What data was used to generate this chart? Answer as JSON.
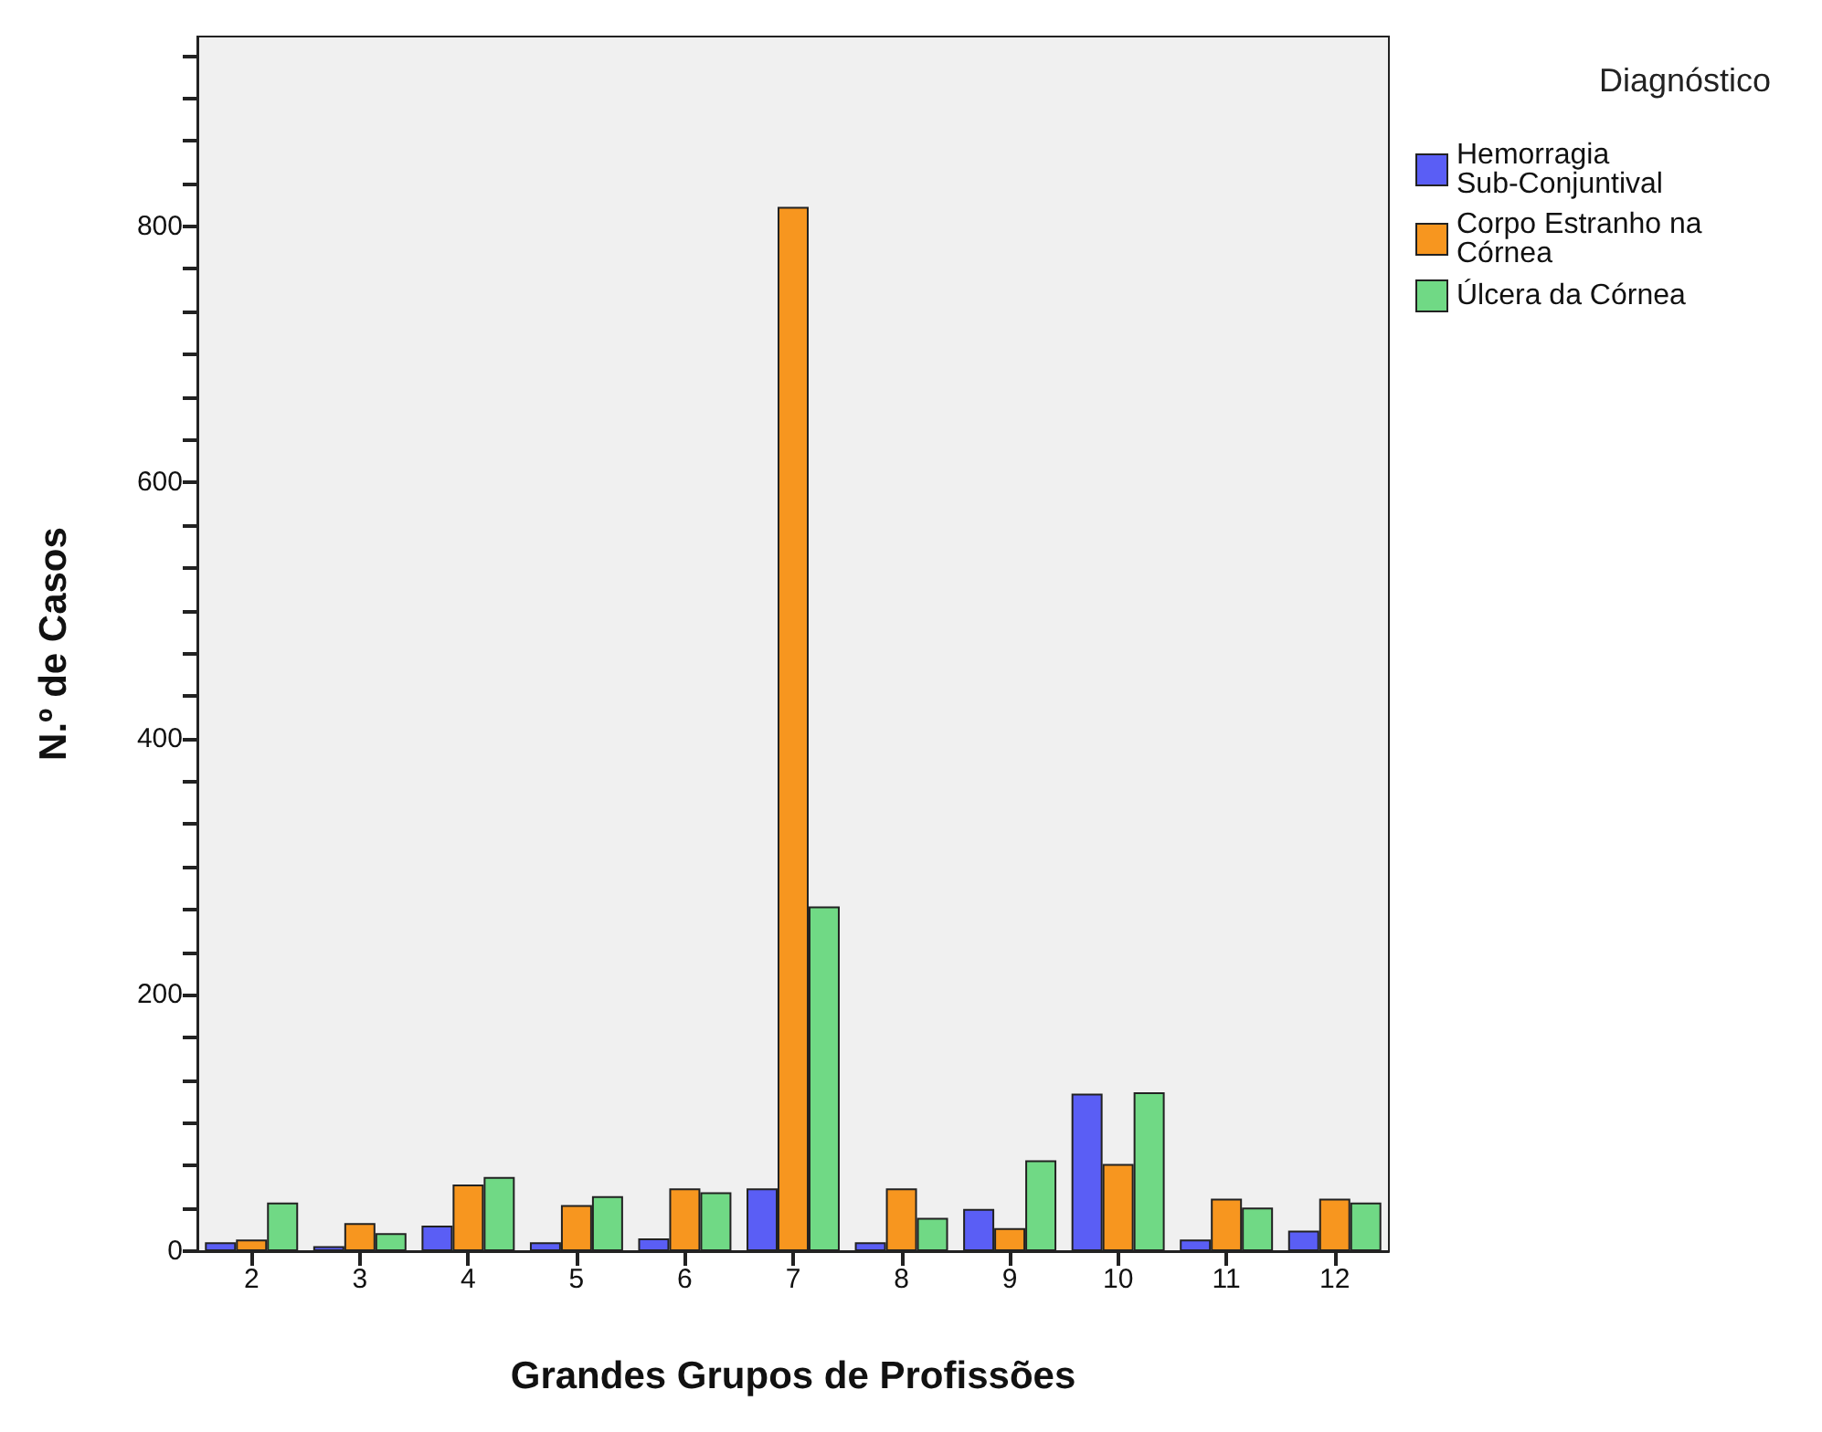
{
  "chart_data": {
    "type": "bar",
    "xlabel": "Grandes Grupos de Profissões",
    "ylabel": "N.º de Casos",
    "legend_title": "Diagnóstico",
    "legend": "top right",
    "grid": false,
    "categories": [
      "2",
      "3",
      "4",
      "5",
      "6",
      "7",
      "8",
      "9",
      "10",
      "11",
      "12"
    ],
    "ylim": [
      0,
      948
    ],
    "yticks": [
      0,
      {
        "value": 33.3,
        "label": null
      },
      {
        "value": 66.7,
        "label": null
      },
      {
        "value": 100,
        "label": null
      },
      {
        "value": 133.3,
        "label": null
      },
      {
        "value": 166.7,
        "label": null
      },
      200,
      {
        "value": 233.3,
        "label": null
      },
      {
        "value": 266.7,
        "label": null
      },
      {
        "value": 300,
        "label": null
      },
      {
        "value": 333.3,
        "label": null
      },
      {
        "value": 366.7,
        "label": null
      },
      400,
      {
        "value": 433.3,
        "label": null
      },
      {
        "value": 466.7,
        "label": null
      },
      {
        "value": 500,
        "label": null
      },
      {
        "value": 533.3,
        "label": null
      },
      {
        "value": 566.7,
        "label": null
      },
      600,
      {
        "value": 633.3,
        "label": null
      },
      {
        "value": 666.7,
        "label": null
      },
      {
        "value": 700,
        "label": null
      },
      {
        "value": 733.3,
        "label": null
      },
      {
        "value": 766.7,
        "label": null
      },
      800,
      {
        "value": 833.3,
        "label": null
      },
      {
        "value": 866.7,
        "label": null
      },
      {
        "value": 900,
        "label": null
      },
      {
        "value": 933.3,
        "label": null
      }
    ],
    "series": [
      {
        "name": "Hemorragia Sub-Conjuntival",
        "color": "#5a5ef5",
        "values": [
          7,
          4,
          20,
          7,
          10,
          49,
          7,
          33,
          123,
          9,
          16
        ]
      },
      {
        "name": "Corpo Estranho na Córnea",
        "color": "#f7961f",
        "values": [
          9,
          22,
          52,
          36,
          49,
          815,
          49,
          18,
          68,
          41,
          41
        ]
      },
      {
        "name": "Úlcera da Córnea",
        "color": "#70d985",
        "values": [
          38,
          14,
          58,
          43,
          46,
          269,
          26,
          71,
          124,
          34,
          38
        ]
      }
    ]
  }
}
